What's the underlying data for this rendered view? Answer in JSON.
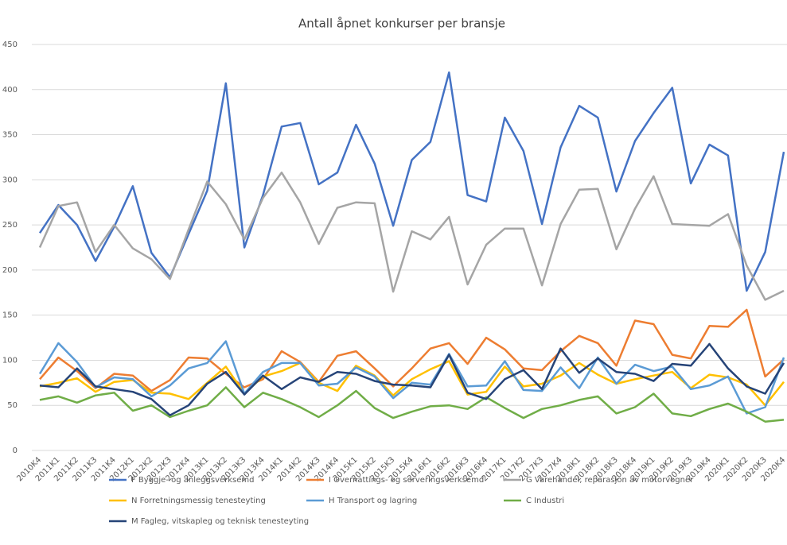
{
  "chart_data": {
    "type": "line",
    "title": "Antall åpnet konkurser per bransje",
    "categories": [
      "2010K4",
      "2011K1",
      "2011K2",
      "2011K3",
      "2011K4",
      "2012K1",
      "2012K2",
      "2012K3",
      "2012K4",
      "2013K1",
      "2013K2",
      "2013K3",
      "2013K4",
      "2014K1",
      "2014K2",
      "2014K3",
      "2014K4",
      "2015K1",
      "2015K2",
      "2015K3",
      "2015K4",
      "2016K1",
      "2016K2",
      "2016K3",
      "2016K4",
      "2017K1",
      "2017K2",
      "2017K3",
      "2017K4",
      "2018K1",
      "2018K2",
      "2018K3",
      "2018K4",
      "2019K1",
      "2019K2",
      "2019K3",
      "2019K4",
      "2020K1",
      "2020K2",
      "2020K3",
      "2020K4"
    ],
    "series": [
      {
        "name": "F Byggje- og anleggsverksemd",
        "color": "#4472c4",
        "values": [
          241,
          272,
          250,
          210,
          248,
          293,
          219,
          192,
          240,
          288,
          407,
          225,
          283,
          359,
          363,
          295,
          308,
          361,
          318,
          249,
          322,
          342,
          419,
          283,
          276,
          369,
          332,
          251,
          336,
          382,
          369,
          287,
          343,
          374,
          402,
          296,
          339,
          327,
          177,
          220,
          331
        ]
      },
      {
        "name": "I Overnattings- og serveringsverksemd",
        "color": "#ed7d31",
        "values": [
          79,
          103,
          88,
          69,
          85,
          83,
          66,
          78,
          103,
          102,
          85,
          70,
          79,
          110,
          98,
          76,
          105,
          110,
          91,
          71,
          91,
          113,
          119,
          96,
          125,
          112,
          91,
          89,
          110,
          127,
          119,
          94,
          144,
          140,
          106,
          102,
          138,
          137,
          156,
          82,
          101
        ]
      },
      {
        "name": "G Varehandel, reparasjon av motorvogner",
        "color": "#a5a5a5",
        "values": [
          225,
          271,
          275,
          220,
          250,
          224,
          212,
          190,
          245,
          298,
          273,
          234,
          280,
          308,
          275,
          229,
          269,
          275,
          274,
          176,
          243,
          234,
          259,
          184,
          228,
          246,
          246,
          183,
          251,
          289,
          290,
          223,
          268,
          304,
          251,
          250,
          249,
          262,
          205,
          167,
          177
        ]
      },
      {
        "name": "N Forretningsmessig tenesteyting",
        "color": "#ffc000",
        "values": [
          71,
          75,
          80,
          65,
          76,
          78,
          64,
          63,
          57,
          75,
          93,
          63,
          82,
          88,
          97,
          75,
          66,
          94,
          83,
          61,
          79,
          90,
          99,
          62,
          65,
          93,
          71,
          74,
          83,
          97,
          84,
          74,
          79,
          83,
          87,
          69,
          84,
          81,
          73,
          50,
          76
        ]
      },
      {
        "name": "H Transport og lagring",
        "color": "#5b9bd5",
        "values": [
          85,
          119,
          98,
          70,
          81,
          79,
          60,
          72,
          91,
          97,
          121,
          63,
          87,
          97,
          97,
          72,
          74,
          92,
          82,
          58,
          75,
          73,
          107,
          71,
          72,
          99,
          67,
          66,
          92,
          69,
          103,
          74,
          95,
          88,
          93,
          68,
          72,
          82,
          41,
          48,
          103
        ]
      },
      {
        "name": "C Industri",
        "color": "#70ad47",
        "values": [
          56,
          60,
          53,
          61,
          64,
          44,
          50,
          37,
          44,
          50,
          70,
          48,
          64,
          57,
          48,
          37,
          50,
          66,
          47,
          36,
          43,
          49,
          50,
          46,
          59,
          47,
          36,
          46,
          50,
          56,
          60,
          41,
          48,
          63,
          41,
          38,
          46,
          52,
          43,
          32,
          34
        ]
      },
      {
        "name": "M Fagleg, vitskapleg og teknisk tenesteyting",
        "color": "#264478",
        "values": [
          72,
          70,
          91,
          71,
          68,
          65,
          57,
          39,
          50,
          74,
          87,
          62,
          83,
          68,
          81,
          76,
          87,
          85,
          77,
          73,
          72,
          70,
          106,
          64,
          57,
          79,
          89,
          68,
          113,
          86,
          102,
          87,
          85,
          77,
          96,
          94,
          118,
          91,
          71,
          63,
          97
        ]
      }
    ],
    "ylim": [
      0,
      450
    ],
    "yticks": [
      0,
      50,
      100,
      150,
      200,
      250,
      300,
      350,
      400,
      450
    ],
    "grid": true
  }
}
